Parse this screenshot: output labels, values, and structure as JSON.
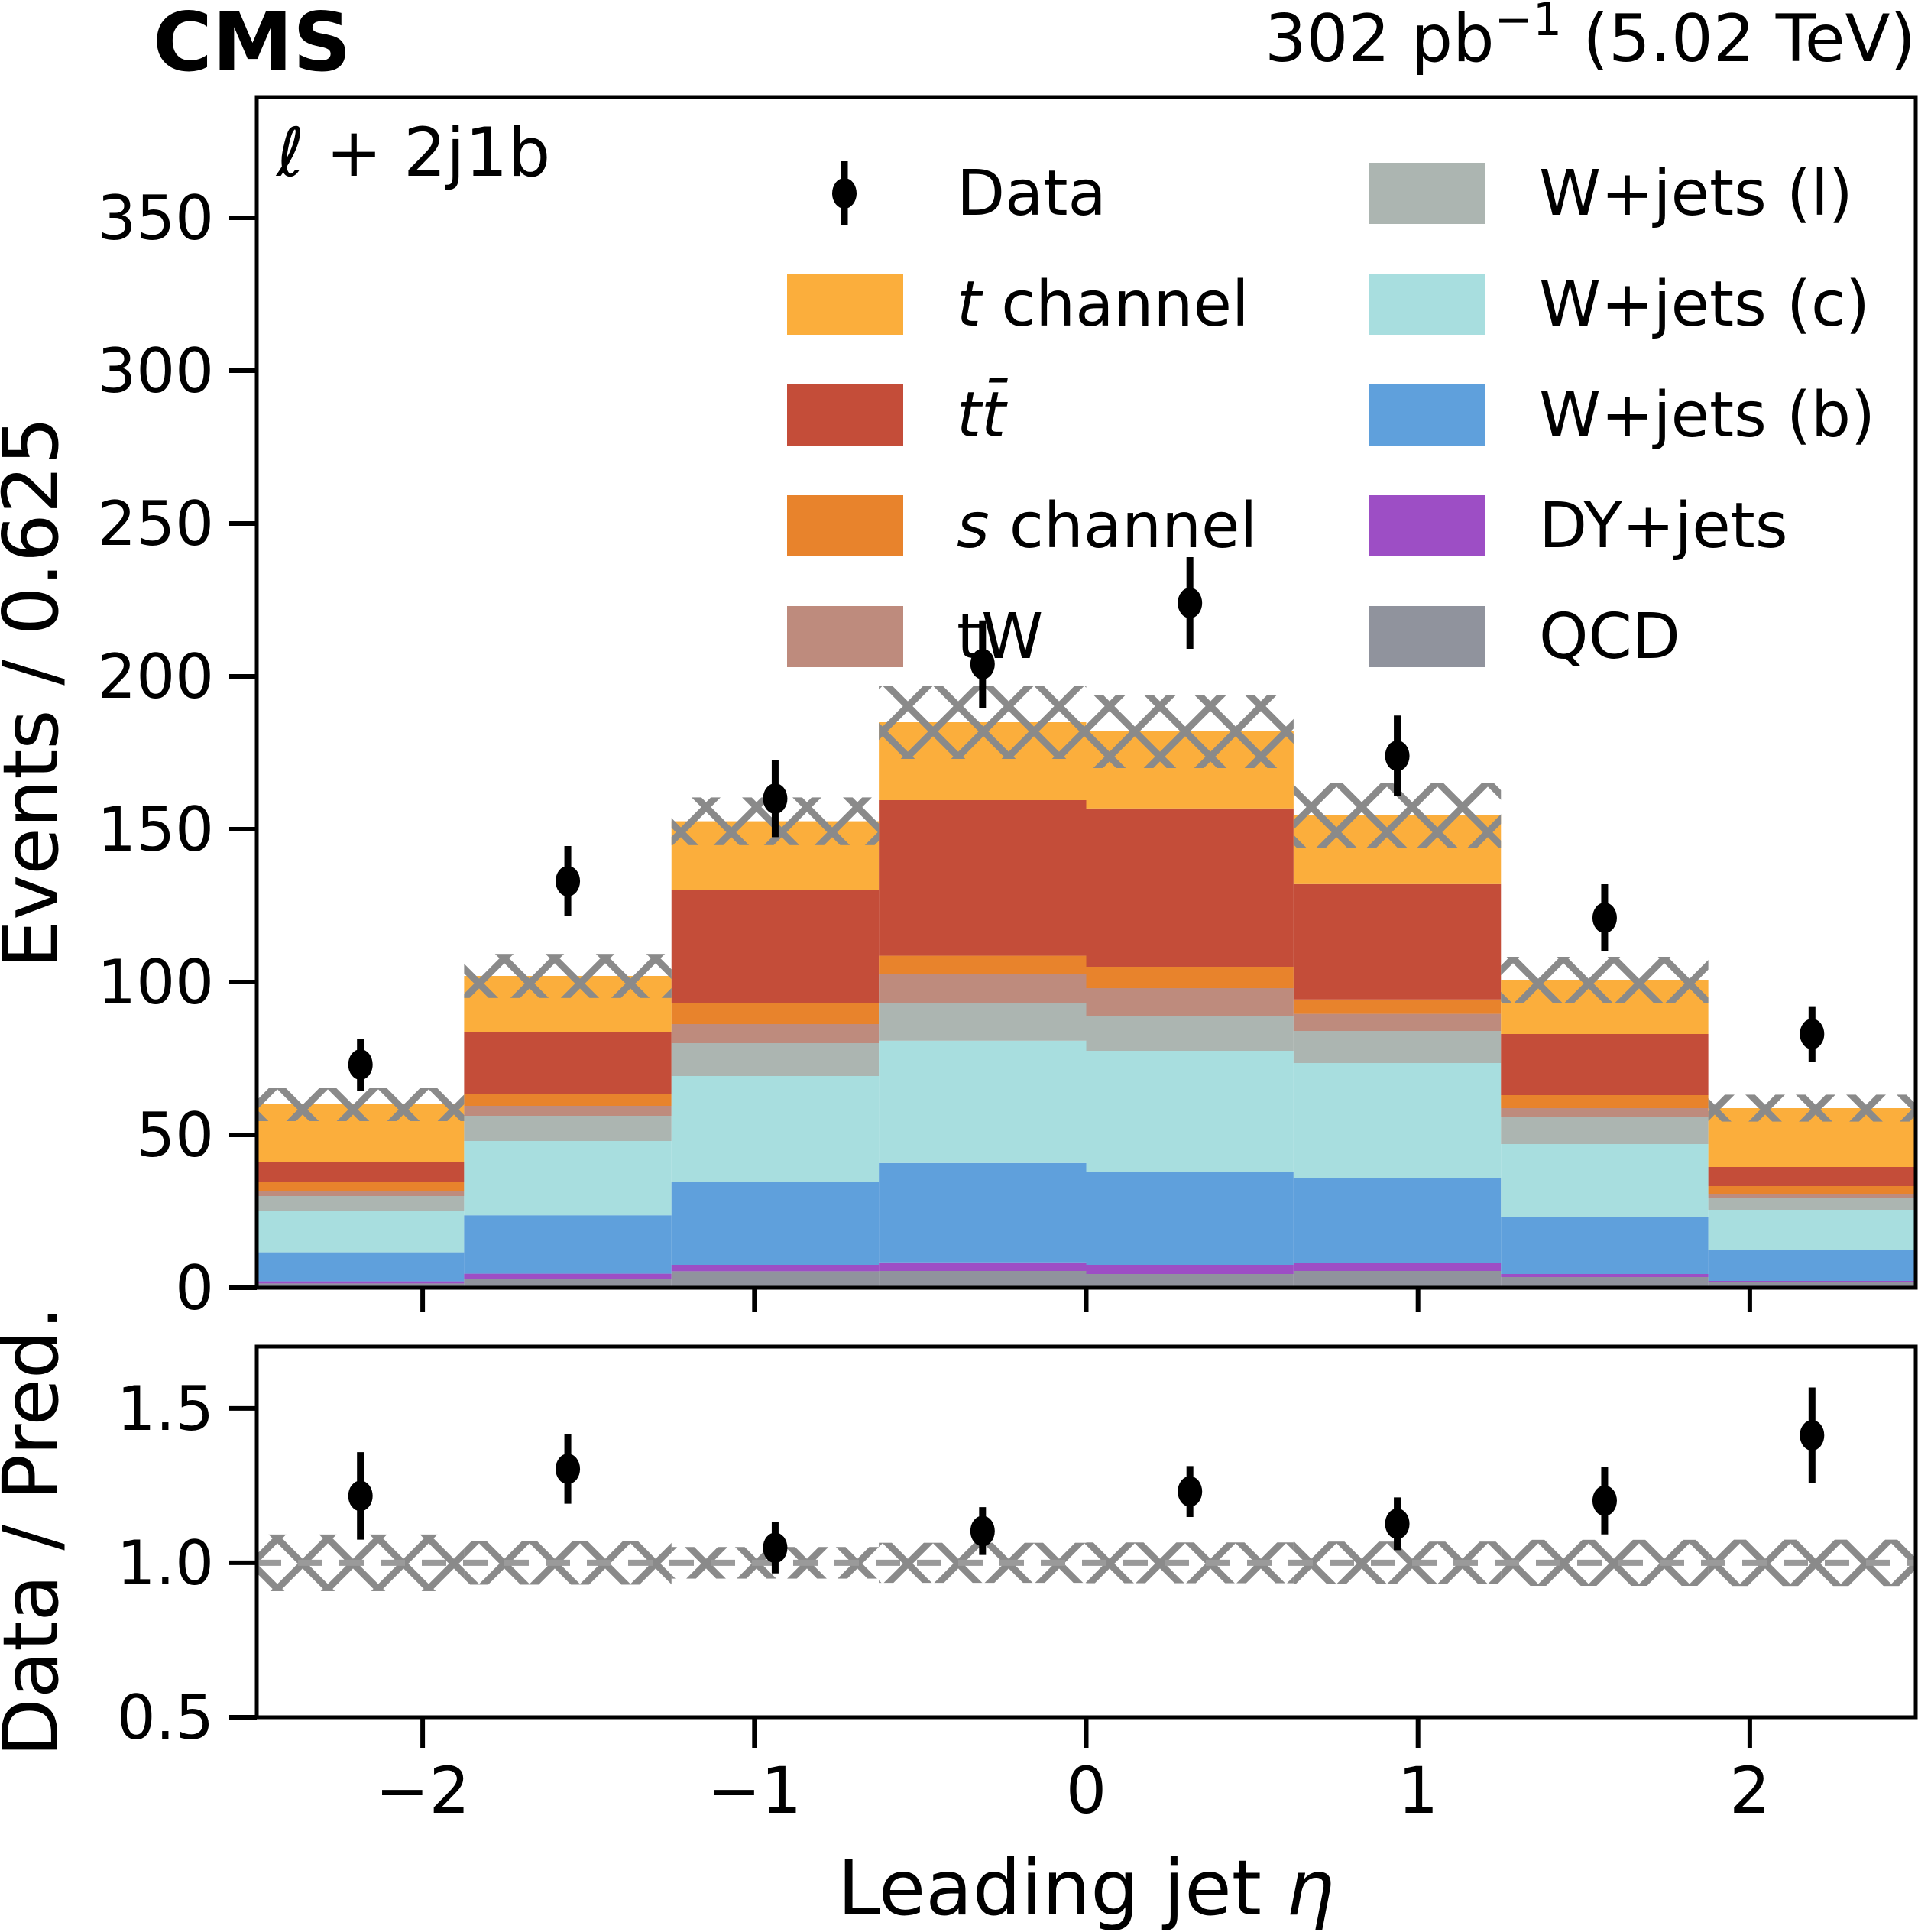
{
  "header": {
    "cms_label": "CMS",
    "luminosity": {
      "prefix": "302 pb",
      "superscript": "−1",
      "suffix": " (5.02 TeV)"
    }
  },
  "plot": {
    "channel_label": "ℓ + 2j1b",
    "ylabel": "Events / 0.625",
    "ratio_ylabel": "Data / Pred.",
    "xlabel_prefix": "Leading jet ",
    "xlabel_symbol": "η"
  },
  "legend": {
    "columns": [
      [
        {
          "label": "Data",
          "marker": "point",
          "color": "#000000",
          "italic": "none"
        },
        {
          "label": "t channel",
          "marker": "swatch",
          "color": "#FBAE3C",
          "italic": "first"
        },
        {
          "label": "tt̄",
          "marker": "swatch",
          "color": "#C44D39",
          "italic": "all"
        },
        {
          "label": "s channel",
          "marker": "swatch",
          "color": "#E8832C",
          "italic": "first"
        },
        {
          "label": "tW",
          "marker": "swatch",
          "color": "#BE8B7D",
          "italic": "none"
        }
      ],
      [
        {
          "label": "W+jets (l)",
          "marker": "swatch",
          "color": "#ACB5B1",
          "italic": "none"
        },
        {
          "label": "W+jets (c)",
          "marker": "swatch",
          "color": "#A8DEDF",
          "italic": "none"
        },
        {
          "label": "W+jets (b)",
          "marker": "swatch",
          "color": "#5FA0DC",
          "italic": "none"
        },
        {
          "label": "DY+jets",
          "marker": "swatch",
          "color": "#9D4EC5",
          "italic": "none"
        },
        {
          "label": "QCD",
          "marker": "swatch",
          "color": "#90939D",
          "italic": "none"
        }
      ]
    ]
  },
  "chart_data": {
    "type": "stacked_histogram_with_ratio",
    "xlabel": "Leading jet η",
    "ylabel": "Events / 0.625",
    "ratio_ylabel": "Data / Pred.",
    "xlim": [
      -2.5,
      2.5
    ],
    "ylim": [
      0,
      389.5
    ],
    "ratio_ylim": [
      0.5,
      1.7
    ],
    "x_ticks": [
      -2,
      -1,
      0,
      1,
      2
    ],
    "y_ticks": [
      0,
      50,
      100,
      150,
      200,
      250,
      300,
      350
    ],
    "ratio_ticks": [
      0.5,
      1.0,
      1.5
    ],
    "bin_edges": [
      -2.5,
      -1.875,
      -1.25,
      -0.625,
      0,
      0.625,
      1.25,
      1.875,
      2.5
    ],
    "series": [
      {
        "name": "QCD",
        "color": "#90939D",
        "values": [
          1.4,
          3.0,
          5.4,
          5.5,
          4.5,
          5.5,
          3.5,
          1.75
        ]
      },
      {
        "name": "DY+jets",
        "color": "#9D4EC5",
        "values": [
          0.7,
          1.6,
          2.1,
          2.8,
          3.0,
          2.5,
          1.0,
          0.5
        ]
      },
      {
        "name": "W+jets (b)",
        "color": "#5FA0DC",
        "values": [
          9.5,
          19.1,
          27.0,
          32.5,
          30.5,
          28.0,
          18.5,
          10.25
        ]
      },
      {
        "name": "W+jets (c)",
        "color": "#A8DEDF",
        "values": [
          13.4,
          24.3,
          34.75,
          40.0,
          39.5,
          37.5,
          24.0,
          13.0
        ]
      },
      {
        "name": "W+jets (l)",
        "color": "#ACB5B1",
        "values": [
          5.0,
          8.25,
          10.75,
          12.2,
          11.25,
          10.5,
          8.75,
          4.0
        ]
      },
      {
        "name": "tW",
        "color": "#BE8B7D",
        "values": [
          1.75,
          3.25,
          6.25,
          9.5,
          9.25,
          5.6,
          3.0,
          1.25
        ]
      },
      {
        "name": "s channel",
        "color": "#E8832C",
        "values": [
          2.9,
          3.8,
          6.75,
          6.1,
          7.0,
          4.7,
          4.25,
          2.5
        ]
      },
      {
        "name": "tt̄",
        "color": "#C44D39",
        "values": [
          6.6,
          20.45,
          37.0,
          50.9,
          51.8,
          37.75,
          20.0,
          6.25
        ]
      },
      {
        "name": "t channel",
        "color": "#FBAE3C",
        "values": [
          18.75,
          18.25,
          22.6,
          25.5,
          25.2,
          22.45,
          17.75,
          19.25
        ]
      }
    ],
    "mc_uncertainty": [
      5.5,
      7.2,
      7.8,
      12.0,
      12.0,
      10.6,
      7.5,
      4.4
    ],
    "data_points": {
      "name": "Data",
      "y": [
        73,
        133,
        160,
        204,
        224,
        174,
        121,
        83
      ],
      "err": [
        8.5,
        11.5,
        12.6,
        14.3,
        15.0,
        13.2,
        11.0,
        9.1
      ]
    },
    "ratio_reference": 1.0,
    "styles": {
      "hatch_color": "#8A8A8A",
      "dashed_line_color": "#9A9A9A",
      "data_color": "#000000",
      "axis_color": "#000000"
    }
  }
}
